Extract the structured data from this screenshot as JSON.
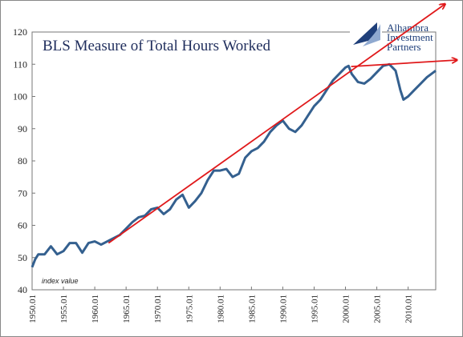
{
  "chart_data": {
    "type": "line",
    "title": "BLS Measure of Total Hours Worked",
    "annotation": "index value",
    "logo": [
      "Alhambra",
      "Investment",
      "Partners"
    ],
    "x": [
      1950,
      1950.5,
      1951,
      1952,
      1953,
      1954,
      1955,
      1956,
      1957,
      1958,
      1959,
      1960,
      1961,
      1962,
      1963,
      1964,
      1965,
      1966,
      1967,
      1968,
      1969,
      1970,
      1971,
      1972,
      1973,
      1974,
      1975,
      1976,
      1977,
      1978,
      1979,
      1980,
      1981,
      1982,
      1983,
      1984,
      1985,
      1986,
      1987,
      1988,
      1989,
      1990,
      1991,
      1992,
      1993,
      1994,
      1995,
      1996,
      1997,
      1998,
      1999,
      2000,
      2000.5,
      2001,
      2002,
      2003,
      2004,
      2005,
      2006,
      2007,
      2008,
      2008.75,
      2009.25,
      2010,
      2011,
      2012,
      2013,
      2014.4
    ],
    "series": [
      {
        "color": "#34608f",
        "values": [
          47,
          49.5,
          51,
          51,
          53.5,
          51,
          52,
          54.5,
          54.5,
          51.5,
          54.5,
          55,
          54,
          55,
          56,
          57,
          59,
          61,
          62.5,
          63,
          65,
          65.5,
          63.5,
          65,
          68,
          69.5,
          65.5,
          67.5,
          70,
          74,
          77,
          77,
          77.5,
          75,
          76,
          81,
          83,
          84,
          86,
          89,
          91,
          92.5,
          90,
          89,
          91,
          94,
          97,
          99,
          102,
          105,
          107,
          109,
          109.5,
          107,
          104.5,
          104,
          105.5,
          107.5,
          109.5,
          110,
          108,
          102,
          99,
          100,
          102,
          104,
          106,
          108
        ]
      }
    ],
    "trends": [
      {
        "color": "#e0191b",
        "x": [
          1962.2,
          2015.9
        ],
        "values": [
          54.5,
          128.7
        ]
      },
      {
        "color": "#e0191b",
        "x": [
          2000.9,
          2017.8
        ],
        "values": [
          109.3,
          111.3
        ]
      }
    ],
    "xlim": [
      1950,
      2014.4
    ],
    "ylim": [
      40,
      120
    ],
    "yticks": [
      40,
      50,
      60,
      70,
      80,
      90,
      100,
      110,
      120
    ],
    "xticks": [
      {
        "value": 1950,
        "label": "1950.01"
      },
      {
        "value": 1955,
        "label": "1955.01"
      },
      {
        "value": 1960,
        "label": "1960.01"
      },
      {
        "value": 1965,
        "label": "1965.01"
      },
      {
        "value": 1970,
        "label": "1970.01"
      },
      {
        "value": 1975,
        "label": "1975.01"
      },
      {
        "value": 1980,
        "label": "1980.01"
      },
      {
        "value": 1985,
        "label": "1985.01"
      },
      {
        "value": 1990,
        "label": "1990.01"
      },
      {
        "value": 1995,
        "label": "1995.01"
      },
      {
        "value": 2000,
        "label": "2000.01"
      },
      {
        "value": 2005,
        "label": "2005.01"
      },
      {
        "value": 2010,
        "label": "2010.01"
      }
    ]
  }
}
